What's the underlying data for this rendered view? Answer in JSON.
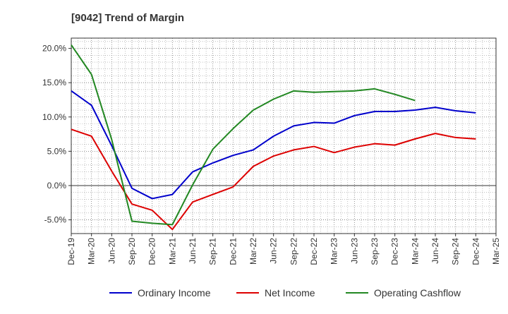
{
  "chart_data": {
    "type": "line",
    "title": "[9042]  Trend of Margin",
    "xlabel": "",
    "ylabel": "",
    "categories": [
      "Dec-19",
      "Mar-20",
      "Jun-20",
      "Sep-20",
      "Dec-20",
      "Mar-21",
      "Jun-21",
      "Sep-21",
      "Dec-21",
      "Mar-22",
      "Jun-22",
      "Sep-22",
      "Dec-22",
      "Mar-23",
      "Jun-23",
      "Sep-23",
      "Dec-23",
      "Mar-24",
      "Jun-24",
      "Sep-24",
      "Dec-24",
      "Mar-25"
    ],
    "ylim": [
      -7.0,
      21.5
    ],
    "yticks": [
      -5.0,
      0.0,
      5.0,
      10.0,
      15.0,
      20.0
    ],
    "ytick_labels": [
      "-5.0%",
      "0.0%",
      "5.0%",
      "10.0%",
      "15.0%",
      "20.0%"
    ],
    "grid": true,
    "legend_position": "bottom",
    "series": [
      {
        "name": "Ordinary Income",
        "color": "#0000cc",
        "values": [
          13.8,
          11.7,
          5.8,
          -0.4,
          -1.9,
          -1.3,
          2.0,
          3.3,
          4.4,
          5.2,
          7.2,
          8.7,
          9.2,
          9.1,
          10.2,
          10.8,
          10.8,
          11.0,
          11.4,
          10.9,
          10.6,
          null
        ]
      },
      {
        "name": "Net Income",
        "color": "#dd0000",
        "values": [
          8.2,
          7.2,
          2.1,
          -2.7,
          -3.6,
          -6.4,
          -2.4,
          -1.3,
          -0.2,
          2.8,
          4.3,
          5.2,
          5.7,
          4.8,
          5.6,
          6.1,
          5.9,
          6.8,
          7.6,
          7.0,
          6.8,
          null
        ]
      },
      {
        "name": "Operating Cashflow",
        "color": "#228822",
        "values": [
          20.5,
          16.2,
          6.7,
          -5.2,
          -5.5,
          -5.7,
          0.1,
          5.3,
          8.3,
          11.0,
          12.6,
          13.8,
          13.6,
          13.7,
          13.8,
          14.1,
          13.3,
          12.4,
          null,
          null,
          null,
          null
        ]
      }
    ]
  }
}
